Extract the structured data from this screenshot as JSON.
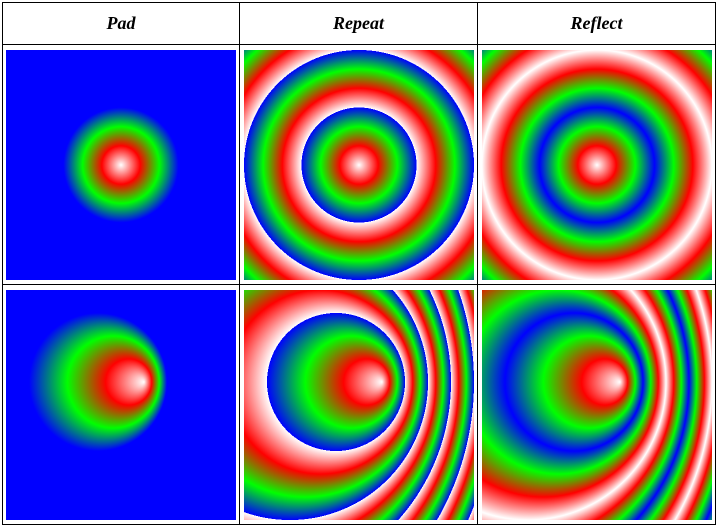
{
  "columns": [
    "Pad",
    "Repeat",
    "Reflect"
  ],
  "gradient_stops": [
    "#ffffff",
    "#ff0000",
    "#00ff00",
    "#0000ff"
  ],
  "cells": [
    {
      "row": "centered-focus",
      "spread": "pad"
    },
    {
      "row": "centered-focus",
      "spread": "repeat"
    },
    {
      "row": "centered-focus",
      "spread": "reflect"
    },
    {
      "row": "offset-focus",
      "spread": "pad"
    },
    {
      "row": "offset-focus",
      "spread": "repeat"
    },
    {
      "row": "offset-focus",
      "spread": "reflect"
    }
  ]
}
